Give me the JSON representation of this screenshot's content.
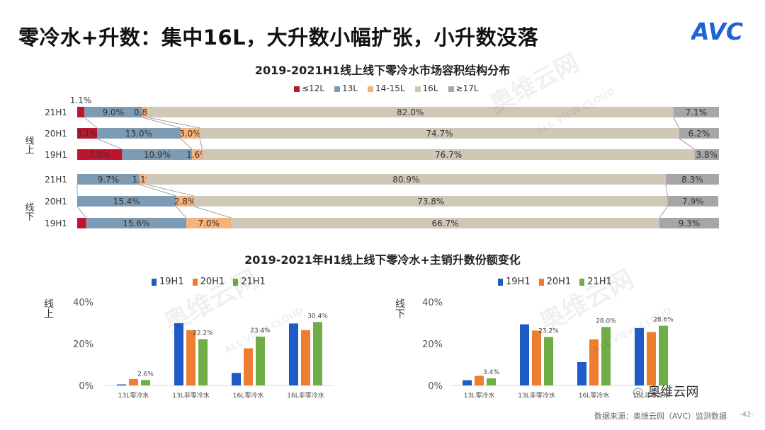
{
  "page": {
    "title": "零冷水+升数：集中16L，大升数小幅扩张，小升数没落",
    "source": "数据来源：奥维云网（AVC）监测数据",
    "page_number": "-42-",
    "brand": "AVC",
    "wechat": "奥维云网",
    "watermark_cn": "奥维云网",
    "watermark_en": "ALL VIEW CLOUD",
    "group_online": "线上",
    "group_offline": "线下"
  },
  "colors": {
    "le12": "#C0142E",
    "l13": "#7D9BB2",
    "l1415": "#F6B27B",
    "l16": "#CFC8B6",
    "ge17": "#A6A6A6",
    "y19": "#1E5BC6",
    "y20": "#ED7D31",
    "y21": "#70AD47",
    "brand": "#1F63D8"
  },
  "chart_data": [
    {
      "type": "bar",
      "orientation": "horizontal-stacked-100",
      "title": "2019-2021H1线上线下零冷水市场容积结构分布",
      "segments": [
        "≤12L",
        "13L",
        "14-15L",
        "16L",
        "≥17L"
      ],
      "rows": [
        {
          "group": "线上",
          "label": "21H1",
          "values": [
            1.1,
            9.0,
            0.8,
            82.0,
            7.1
          ],
          "labels": [
            "1.1%",
            "9.0%",
            "0.8%",
            "82.0%",
            "7.1%"
          ]
        },
        {
          "group": "线上",
          "label": "20H1",
          "values": [
            3.1,
            13.0,
            3.0,
            74.7,
            6.2
          ],
          "labels": [
            "3.1%",
            "13.0%",
            "3.0%",
            "74.7%",
            "6.2%"
          ]
        },
        {
          "group": "线上",
          "label": "19H1",
          "values": [
            7.0,
            10.9,
            1.6,
            76.7,
            3.8
          ],
          "labels": [
            "7.0%",
            "10.9%",
            "1.6%",
            "76.7%",
            "3.8%"
          ]
        },
        {
          "group": "线下",
          "label": "21H1",
          "values": [
            0.0,
            9.7,
            1.1,
            80.9,
            8.3
          ],
          "labels": [
            "",
            "9.7%",
            "1.1%",
            "80.9%",
            "8.3%"
          ]
        },
        {
          "group": "线下",
          "label": "20H1",
          "values": [
            0.0,
            15.4,
            2.8,
            73.8,
            7.9
          ],
          "labels": [
            "",
            "15.4%",
            "2.8%",
            "73.8%",
            "7.9%"
          ]
        },
        {
          "group": "线下",
          "label": "19H1",
          "values": [
            1.4,
            15.6,
            7.0,
            66.7,
            9.3
          ],
          "labels": [
            "",
            "15.6%",
            "7.0%",
            "66.7%",
            "9.3%"
          ]
        }
      ]
    },
    {
      "type": "bar",
      "title": "2019-2021年H1线上线下零冷水+主销升数份额变化",
      "group": "线上",
      "categories": [
        "13L零冷水",
        "13L非零冷水",
        "16L零冷水",
        "16L非零冷水"
      ],
      "series": [
        {
          "name": "19H1",
          "values": [
            0.5,
            29.8,
            6.0,
            29.7
          ]
        },
        {
          "name": "20H1",
          "values": [
            3.1,
            26.5,
            17.8,
            26.5
          ]
        },
        {
          "name": "21H1",
          "values": [
            2.6,
            22.2,
            23.4,
            30.4
          ]
        }
      ],
      "value_labels": [
        "2.6%",
        "22.2%",
        "23.4%",
        "30.4%"
      ],
      "yticks": [
        "0%",
        "20%",
        "40%"
      ],
      "ylim": [
        0,
        40
      ]
    },
    {
      "type": "bar",
      "group": "线下",
      "categories": [
        "13L零冷水",
        "13L非零冷水",
        "16L零冷水",
        "16L非零冷水"
      ],
      "series": [
        {
          "name": "19H1",
          "values": [
            2.5,
            29.3,
            11.2,
            27.5
          ]
        },
        {
          "name": "20H1",
          "values": [
            4.6,
            26.3,
            22.1,
            25.6
          ]
        },
        {
          "name": "21H1",
          "values": [
            3.4,
            23.2,
            28.0,
            28.6
          ]
        }
      ],
      "value_labels": [
        "3.4%",
        "23.2%",
        "28.0%",
        "28.6%"
      ],
      "yticks": [
        "0%",
        "20%",
        "40%"
      ],
      "ylim": [
        0,
        40
      ]
    }
  ]
}
